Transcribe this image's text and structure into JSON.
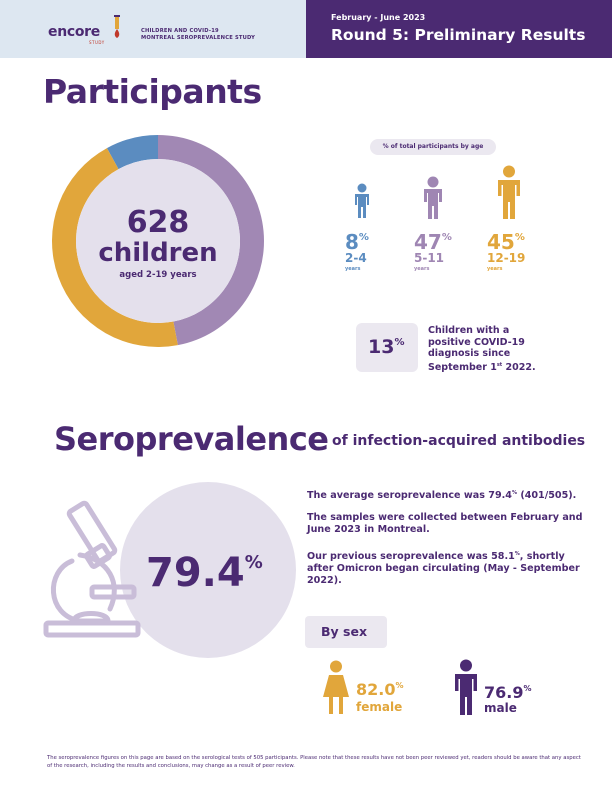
{
  "header": {
    "logo_text": "encore",
    "logo_sub": "STUDY",
    "study_line1": "CHILDREN AND COVID-19",
    "study_line2": "MONTREAL SEROPREVALENCE STUDY",
    "dates": "February - June 2023",
    "round_title": "Round 5: Preliminary Results"
  },
  "participants": {
    "heading": "Participants",
    "total_number": "628",
    "total_label": "children",
    "age_note": "aged 2-19 years",
    "donut_segments": [
      {
        "label": "2-4",
        "percent": 8,
        "color": "#5b8cc0"
      },
      {
        "label": "5-11",
        "percent": 47,
        "color": "#a188b4"
      },
      {
        "label": "12-19",
        "percent": 45,
        "color": "#e1a63b"
      }
    ],
    "age_pill": "% of total participants by age",
    "age_groups": [
      {
        "percent": "8",
        "unit": "%",
        "range": "2-4",
        "years": "years",
        "color": "#5b8cc0"
      },
      {
        "percent": "47",
        "unit": "%",
        "range": "5-11",
        "years": "years",
        "color": "#9f86b3"
      },
      {
        "percent": "45",
        "unit": "%",
        "range": "12-19",
        "years": "years",
        "color": "#e1a63b"
      }
    ],
    "positive_value": "13",
    "positive_unit": "%",
    "positive_line1": "Children with a",
    "positive_line2": "positive COVID-19",
    "positive_line3": "diagnosis since",
    "positive_line4_pre": "September 1",
    "positive_line4_sup": "st",
    "positive_line4_post": " 2022."
  },
  "seroprevalence": {
    "heading": "Seroprevalence",
    "subheading": "of infection-acquired antibodies",
    "value": "79.4",
    "unit": "%",
    "para1_pre": "The average seroprevalence was 79.4",
    "para1_sup": "%",
    "para1_post": " (401/505).",
    "para2": "The samples were collected between February and June 2023 in Montreal.",
    "para3_pre": "Our previous seroprevalence was 58.1",
    "para3_sup": "%",
    "para3_post": ", shortly after Omicron began circulating (May - September 2022).",
    "by_sex_label": "By sex",
    "female_value": "82.0",
    "female_unit": "%",
    "female_label": "female",
    "female_color": "#e1a63b",
    "male_value": "76.9",
    "male_unit": "%",
    "male_label": "male",
    "male_color": "#4b2a72"
  },
  "footnote": "The seroprevalence figures on this page are based on the serological tests of 505 participants. Please note that these results have not been peer reviewed yet, readers should be aware that any aspect of the research, including the results and conclusions, may change as a result of peer review."
}
